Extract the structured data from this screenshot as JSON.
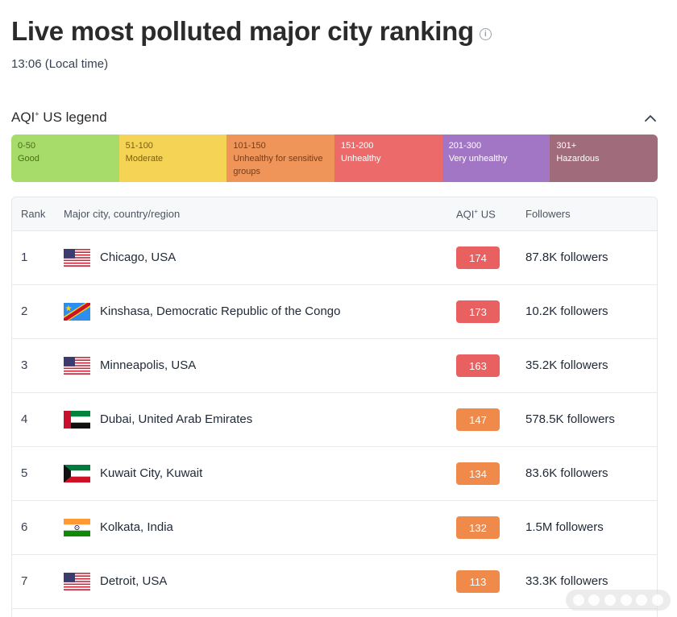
{
  "header": {
    "title": "Live most polluted major city ranking",
    "time": "13:06 (Local time)"
  },
  "legend": {
    "title": "AQI",
    "title_sup": "+",
    "title_suffix": " US legend",
    "segments": [
      {
        "range": "0-50",
        "label": "Good",
        "color": "#a8dc6a",
        "text_color": "#4a6b1e"
      },
      {
        "range": "51-100",
        "label": "Moderate",
        "color": "#f5d354",
        "text_color": "#7a6010"
      },
      {
        "range": "101-150",
        "label": "Unhealthy for sensitive groups",
        "color": "#f0955a",
        "text_color": "#7a3b12"
      },
      {
        "range": "151-200",
        "label": "Unhealthy",
        "color": "#ec6b6a",
        "text_color": "#ffffff"
      },
      {
        "range": "201-300",
        "label": "Very unhealthy",
        "color": "#a276c4",
        "text_color": "#ffffff"
      },
      {
        "range": "301+",
        "label": "Hazardous",
        "color": "#a06b7b",
        "text_color": "#ffffff"
      }
    ]
  },
  "table": {
    "headers": {
      "rank": "Rank",
      "city": "Major city, country/region",
      "aqi": "AQI",
      "aqi_sup": "+",
      "aqi_suffix": " US",
      "followers": "Followers"
    },
    "rows": [
      {
        "rank": "1",
        "flag": "usa",
        "city": "Chicago, USA",
        "aqi": "174",
        "aqi_color": "#e8605f",
        "followers_count": "87.8K",
        "followers_word": " followers"
      },
      {
        "rank": "2",
        "flag": "drc",
        "city": "Kinshasa, Democratic Republic of the Congo",
        "aqi": "173",
        "aqi_color": "#e8605f",
        "followers_count": "10.2K",
        "followers_word": " followers"
      },
      {
        "rank": "3",
        "flag": "usa",
        "city": "Minneapolis, USA",
        "aqi": "163",
        "aqi_color": "#e8605f",
        "followers_count": "35.2K",
        "followers_word": " followers"
      },
      {
        "rank": "4",
        "flag": "uae",
        "city": "Dubai, United Arab Emirates",
        "aqi": "147",
        "aqi_color": "#f08a4b",
        "followers_count": "578.5K",
        "followers_word": " followers"
      },
      {
        "rank": "5",
        "flag": "kuwait",
        "city": "Kuwait City, Kuwait",
        "aqi": "134",
        "aqi_color": "#f08a4b",
        "followers_count": "83.6K",
        "followers_word": " followers"
      },
      {
        "rank": "6",
        "flag": "india",
        "city": "Kolkata, India",
        "aqi": "132",
        "aqi_color": "#f08a4b",
        "followers_count": "1.5M",
        "followers_word": " followers"
      },
      {
        "rank": "7",
        "flag": "usa",
        "city": "Detroit, USA",
        "aqi": "113",
        "aqi_color": "#f08a4b",
        "followers_count": "33.3K",
        "followers_word": " followers"
      }
    ]
  }
}
